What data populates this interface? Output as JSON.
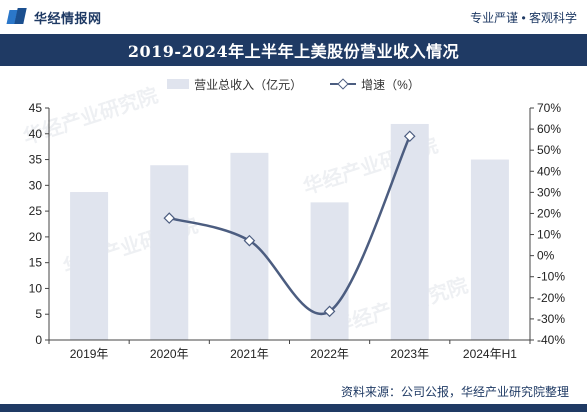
{
  "header": {
    "brand": "华经情报网",
    "slogan": "专业严谨 • 客观科学"
  },
  "colors": {
    "navy": "#1f3a64",
    "bar": "#e0e4ee",
    "line": "#4c5d80"
  },
  "chart_data": {
    "type": "bar",
    "title": "2019-2024年上半年上美股份营业收入情况",
    "categories": [
      "2019年",
      "2020年",
      "2021年",
      "2022年",
      "2023年",
      "2024年H1"
    ],
    "series": [
      {
        "name": "营业总收入（亿元）",
        "type": "bar",
        "axis": "left",
        "values": [
          28.7,
          33.9,
          36.3,
          26.7,
          41.9,
          35.0
        ]
      },
      {
        "name": "增速（%）",
        "type": "line",
        "axis": "right",
        "values": [
          null,
          17.8,
          7.1,
          -26.4,
          56.6,
          null
        ]
      }
    ],
    "y_left": {
      "min": 0,
      "max": 45,
      "step": 5
    },
    "y_right": {
      "min": -40,
      "max": 70,
      "step": 10,
      "unit": "%"
    },
    "grid": false,
    "legend_position": "top"
  },
  "footer": {
    "source": "资料来源：公司公报，华经产业研究院整理"
  },
  "watermark": "华经产业研究院"
}
